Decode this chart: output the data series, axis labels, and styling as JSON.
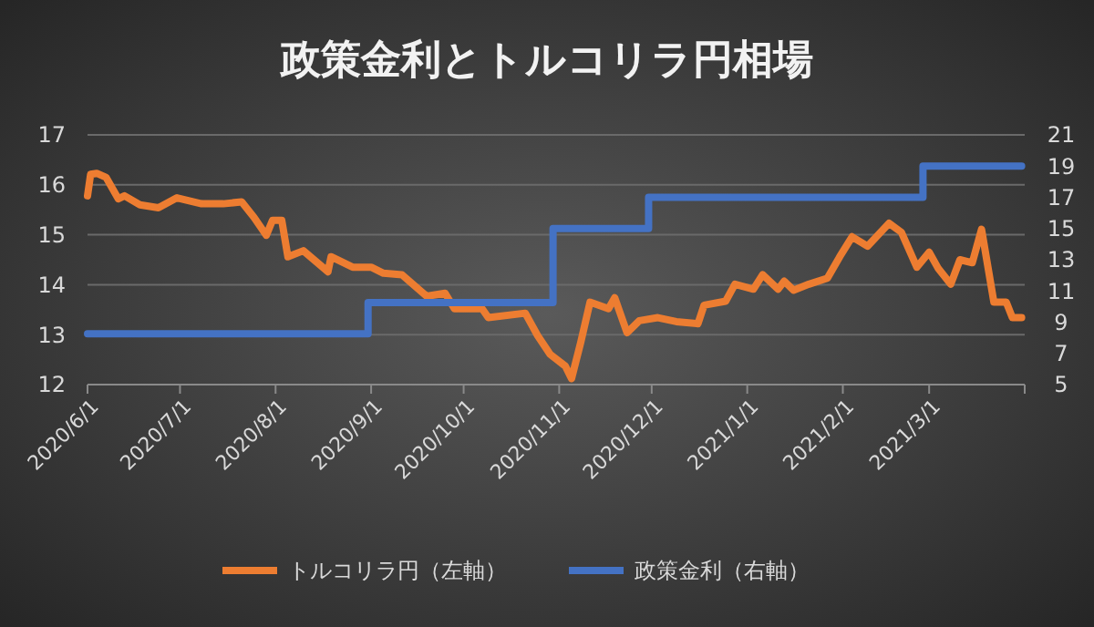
{
  "chart_data": {
    "type": "line",
    "title": "政策金利とトルコリラ円相場",
    "xlim": [
      "2020-06-01",
      "2021-04-01"
    ],
    "xticks": [
      {
        "value": "2020-06-01",
        "label": "2020/6/1"
      },
      {
        "value": "2020-07-01",
        "label": "2020/7/1"
      },
      {
        "value": "2020-08-01",
        "label": "2020/8/1"
      },
      {
        "value": "2020-09-01",
        "label": "2020/9/1"
      },
      {
        "value": "2020-10-01",
        "label": "2020/10/1"
      },
      {
        "value": "2020-11-01",
        "label": "2020/11/1"
      },
      {
        "value": "2020-12-01",
        "label": "2020/12/1"
      },
      {
        "value": "2021-01-01",
        "label": "2021/1/1"
      },
      {
        "value": "2021-02-01",
        "label": "2021/2/1"
      },
      {
        "value": "2021-03-01",
        "label": "2021/3/1"
      },
      {
        "value": "2021-04-01",
        "label": null
      }
    ],
    "ylim": [
      12,
      17
    ],
    "yticks": [
      12,
      13,
      14,
      15,
      16,
      17
    ],
    "y2lim": [
      5,
      21
    ],
    "y2ticks": [
      5,
      7,
      9,
      11,
      13,
      15,
      17,
      19,
      21
    ],
    "grid": "y",
    "legend": "bottom",
    "series": [
      {
        "name": "トルコリラ円（左軸）",
        "color": "#ed7d31",
        "x": [
          "2020-06-01",
          "2020-06-02",
          "2020-06-04",
          "2020-06-07",
          "2020-06-11",
          "2020-06-13",
          "2020-06-18",
          "2020-06-24",
          "2020-06-30",
          "2020-07-08",
          "2020-07-15",
          "2020-07-21",
          "2020-07-25",
          "2020-07-29",
          "2020-07-31",
          "2020-08-03",
          "2020-08-05",
          "2020-08-10",
          "2020-08-18",
          "2020-08-19",
          "2020-08-26",
          "2020-09-01",
          "2020-09-05",
          "2020-09-11",
          "2020-09-19",
          "2020-09-25",
          "2020-09-28",
          "2020-10-07",
          "2020-10-09",
          "2020-10-21",
          "2020-10-25",
          "2020-10-29",
          "2020-11-03",
          "2020-11-05",
          "2020-11-08",
          "2020-11-11",
          "2020-11-17",
          "2020-11-19",
          "2020-11-23",
          "2020-11-27",
          "2020-12-03",
          "2020-12-09",
          "2020-12-16",
          "2020-12-18",
          "2020-12-25",
          "2020-12-28",
          "2021-01-03",
          "2021-01-06",
          "2021-01-11",
          "2021-01-13",
          "2021-01-16",
          "2021-01-21",
          "2021-01-27",
          "2021-01-31",
          "2021-02-04",
          "2021-02-09",
          "2021-02-16",
          "2021-02-20",
          "2021-02-25",
          "2021-03-01",
          "2021-03-04",
          "2021-03-08",
          "2021-03-11",
          "2021-03-15",
          "2021-03-18",
          "2021-03-22",
          "2021-03-26",
          "2021-03-28",
          "2021-03-31"
        ],
        "values": [
          15.78,
          16.21,
          16.23,
          16.15,
          15.72,
          15.78,
          15.6,
          15.54,
          15.74,
          15.62,
          15.62,
          15.66,
          15.35,
          14.99,
          15.29,
          15.29,
          14.56,
          14.68,
          14.26,
          14.56,
          14.35,
          14.35,
          14.23,
          14.2,
          13.77,
          13.83,
          13.52,
          13.52,
          13.34,
          13.43,
          12.98,
          12.61,
          12.37,
          12.12,
          12.85,
          13.65,
          13.52,
          13.74,
          13.04,
          13.28,
          13.34,
          13.26,
          13.22,
          13.59,
          13.67,
          14.01,
          13.91,
          14.2,
          13.91,
          14.07,
          13.89,
          14.01,
          14.13,
          14.56,
          14.96,
          14.77,
          15.23,
          15.05,
          14.35,
          14.65,
          14.32,
          14.01,
          14.5,
          14.44,
          15.11,
          13.65,
          13.65,
          13.34,
          13.34
        ]
      },
      {
        "name": "政策金利（右軸）",
        "color": "#4472c4",
        "type": "step",
        "axis": "y2",
        "x": [
          "2020-06-01",
          "2020-08-31",
          "2020-10-30",
          "2020-11-30",
          "2021-02-27",
          "2021-03-31"
        ],
        "values": [
          8.25,
          10.25,
          15,
          17,
          19,
          19
        ]
      }
    ]
  }
}
